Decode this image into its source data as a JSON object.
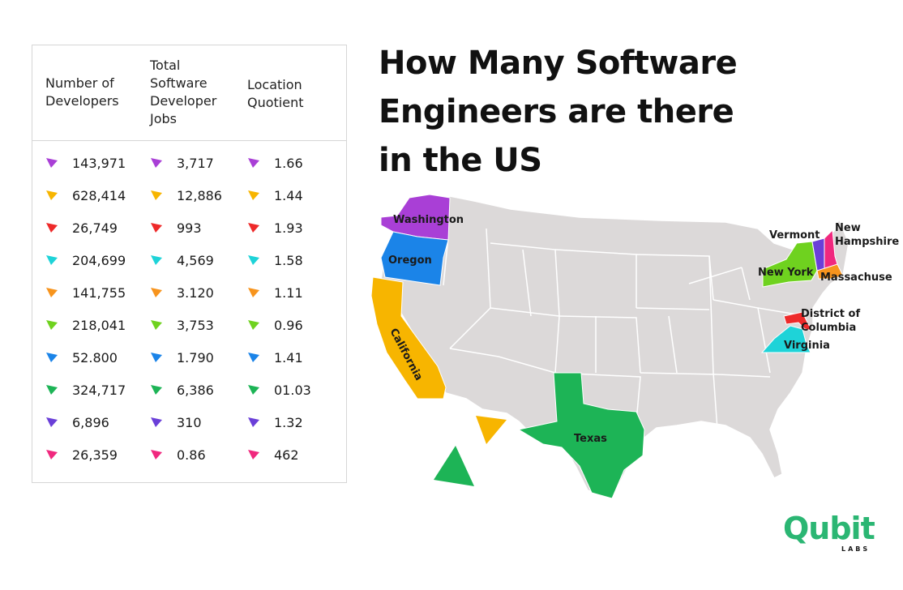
{
  "table": {
    "headers": [
      "Number of\nDevelopers",
      "Total\nSoftware\nDeveloper\nJobs",
      "Location\nQuotient"
    ],
    "rows": [
      {
        "color": "#a93fd6",
        "developers": "143,971",
        "jobs": "3,717",
        "lq": "1.66"
      },
      {
        "color": "#f7b500",
        "developers": "628,414",
        "jobs": "12,886",
        "lq": "1.44"
      },
      {
        "color": "#ee2a2a",
        "developers": "26,749",
        "jobs": "993",
        "lq": "1.93"
      },
      {
        "color": "#1ed3d8",
        "developers": "204,699",
        "jobs": "4,569",
        "lq": "1.58"
      },
      {
        "color": "#f7941d",
        "developers": "141,755",
        "jobs": "3.120",
        "lq": "1.11"
      },
      {
        "color": "#6fd21f",
        "developers": "218,041",
        "jobs": "3,753",
        "lq": "0.96"
      },
      {
        "color": "#1b84e8",
        "developers": "52.800",
        "jobs": "1.790",
        "lq": "1.41"
      },
      {
        "color": "#1db456",
        "developers": "324,717",
        "jobs": "6,386",
        "lq": "01.03"
      },
      {
        "color": "#6a3fd8",
        "developers": "6,896",
        "jobs": "310",
        "lq": "1.32"
      },
      {
        "color": "#f0287e",
        "developers": "26,359",
        "jobs": "0.86",
        "lq": "462"
      }
    ]
  },
  "title": "How Many Software Engineers are there in the US",
  "map": {
    "base_color": "#dcd9d9",
    "states": [
      {
        "name": "Washington",
        "color": "#a93fd6"
      },
      {
        "name": "Oregon",
        "color": "#1b84e8"
      },
      {
        "name": "California",
        "color": "#f7b500"
      },
      {
        "name": "Texas",
        "color": "#1db456"
      },
      {
        "name": "New York",
        "color": "#6fd21f"
      },
      {
        "name": "Vermont",
        "color": "#6a3fd8"
      },
      {
        "name": "New Hampshire",
        "color": "#f0287e"
      },
      {
        "name": "Massachuse",
        "color": "#f7941d"
      },
      {
        "name": "District of Columbia",
        "color": "#ee2a2a"
      },
      {
        "name": "Virginia",
        "color": "#1ed3d8"
      }
    ],
    "labels": {
      "washington": "Washington",
      "oregon": "Oregon",
      "california": "California",
      "texas": "Texas",
      "new_york": "New York",
      "vermont": "Vermont",
      "new_hampshire_1": "New",
      "new_hampshire_2": "Hampshire",
      "massachusetts": "Massachuse",
      "dc_1": "District of",
      "dc_2": "Columbia",
      "virginia": "Virginia"
    }
  },
  "logo": {
    "word": "Qubit",
    "sub": "LABS"
  }
}
